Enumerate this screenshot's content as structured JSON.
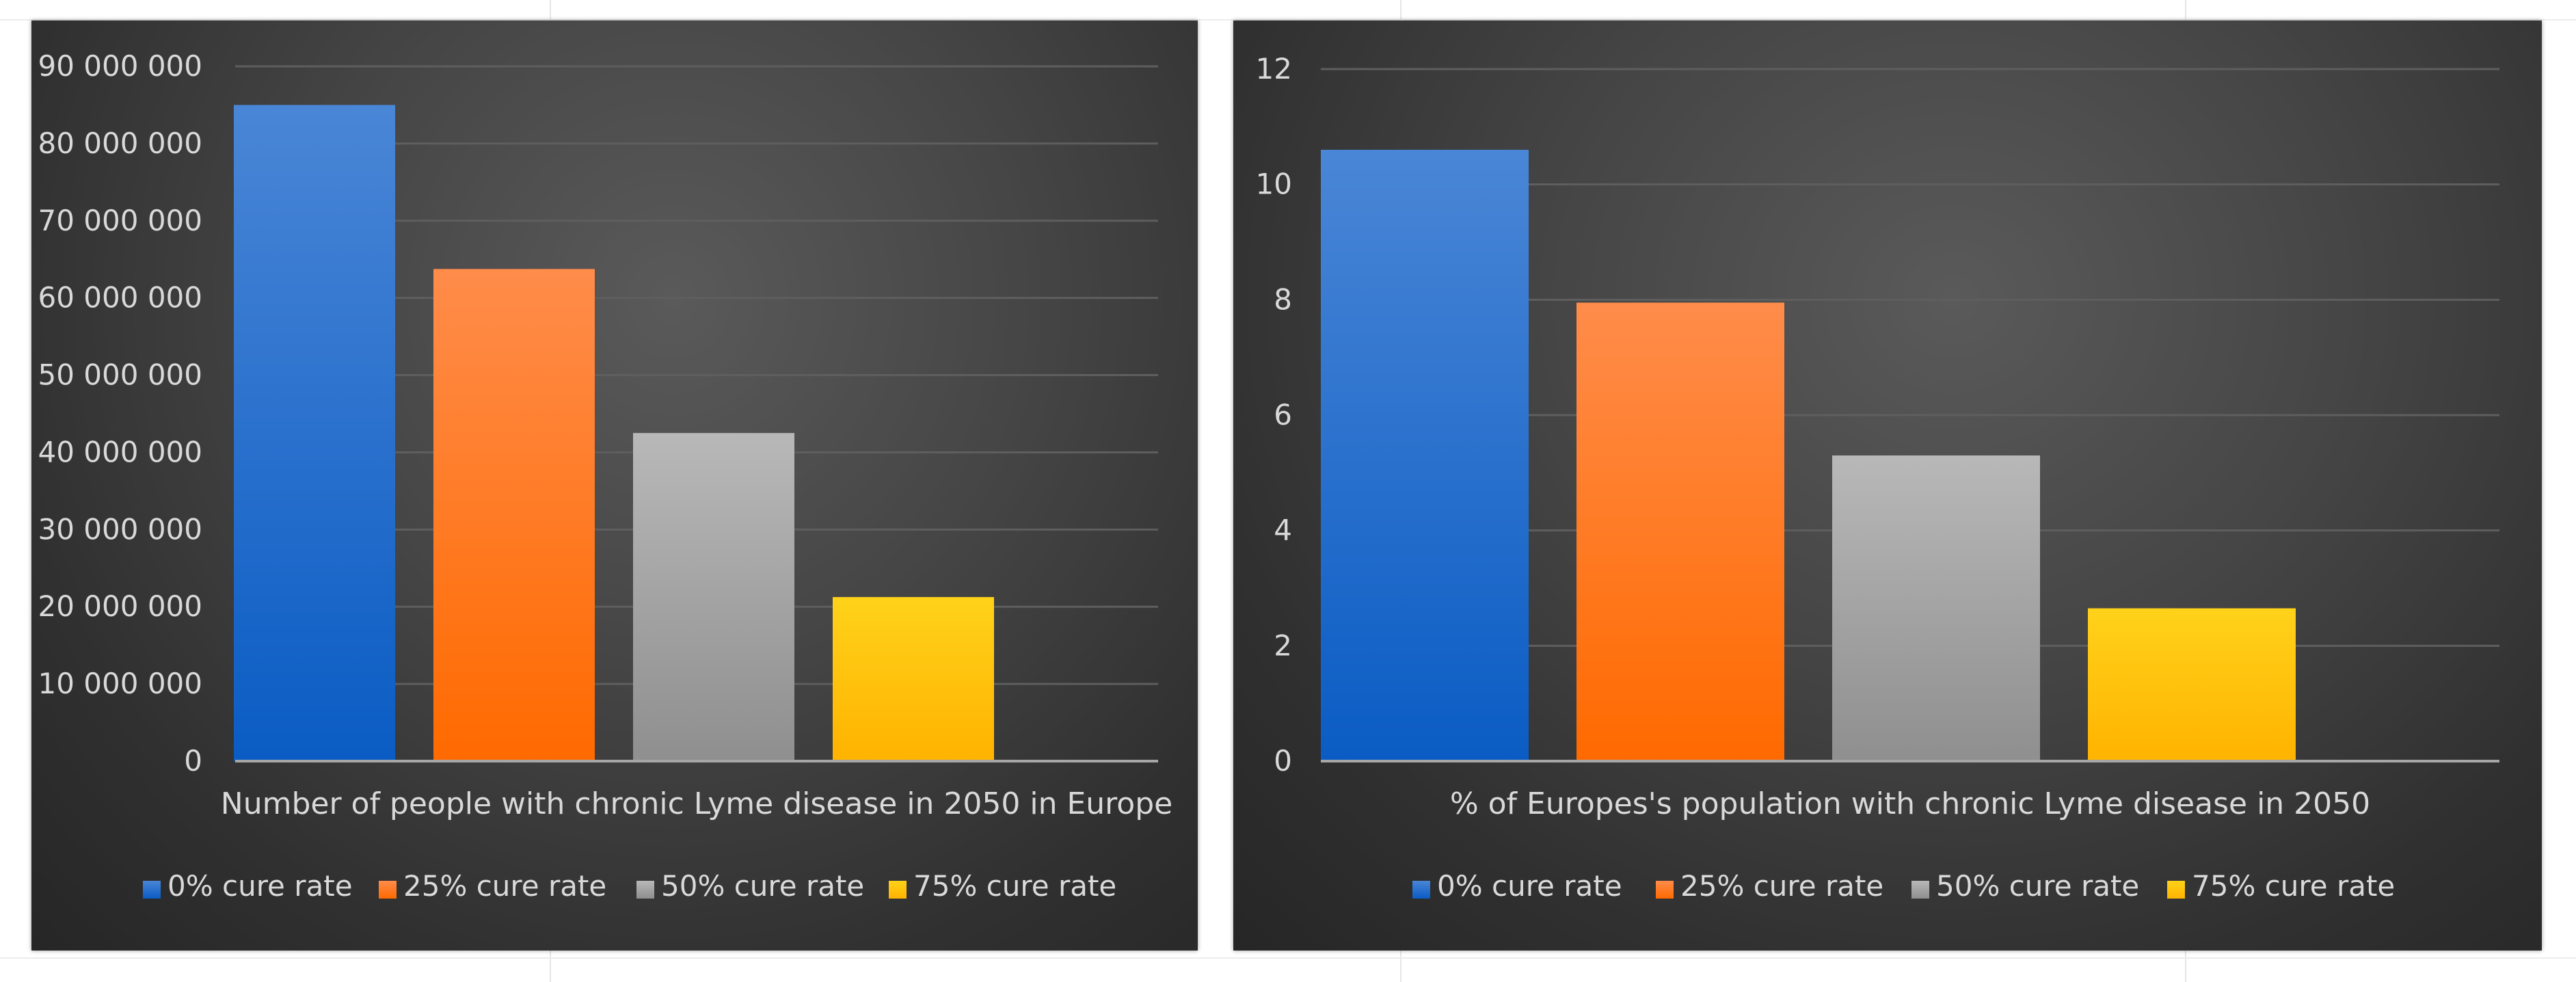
{
  "chart_data": [
    {
      "type": "bar",
      "title": "Number of people with chronic Lyme disease in 2050 in Europe",
      "categories": [
        "0% cure rate",
        "25% cure rate",
        "50% cure rate",
        "75% cure rate"
      ],
      "values": [
        85000000,
        63750000,
        42500000,
        21250000
      ],
      "ylim": [
        0,
        90000000
      ],
      "yticks": [
        0,
        10000000,
        20000000,
        30000000,
        40000000,
        50000000,
        60000000,
        70000000,
        80000000,
        90000000
      ],
      "ytick_labels": [
        "0",
        "10 000 000",
        "20 000 000",
        "30 000 000",
        "40 000 000",
        "50 000 000",
        "60 000 000",
        "70 000 000",
        "80 000 000",
        "90 000 000"
      ],
      "xlabel": "Number of people with chronic Lyme disease in 2050 in Europe",
      "legend": [
        "0% cure rate",
        "25% cure rate",
        "50% cure rate",
        "75% cure rate"
      ],
      "legend_position": "bottom",
      "grid": true
    },
    {
      "type": "bar",
      "title": "% of Europes's population with chronic Lyme disease in 2050",
      "categories": [
        "0% cure rate",
        "25% cure rate",
        "50% cure rate",
        "75% cure rate"
      ],
      "values": [
        10.6,
        7.95,
        5.3,
        2.65
      ],
      "ylim": [
        0,
        12
      ],
      "yticks": [
        0,
        2,
        4,
        6,
        8,
        10,
        12
      ],
      "ytick_labels": [
        "0",
        "2",
        "4",
        "6",
        "8",
        "10",
        "12"
      ],
      "xlabel": "% of Europes's population with chronic Lyme disease in 2050",
      "legend": [
        "0% cure rate",
        "25% cure rate",
        "50% cure rate",
        "75% cure rate"
      ],
      "legend_position": "bottom",
      "grid": true
    }
  ],
  "colors": {
    "series": [
      {
        "top": "#4a86d6",
        "bottom": "#0a5cc4"
      },
      {
        "top": "#ff8c4a",
        "bottom": "#ff6a00"
      },
      {
        "top": "#b8b8b8",
        "bottom": "#8f8f8f"
      },
      {
        "top": "#ffd21a",
        "bottom": "#ffb300"
      }
    ],
    "text": "#d9d9d9",
    "grid": "#5e5e5e",
    "axis": "#a6a6a6"
  }
}
